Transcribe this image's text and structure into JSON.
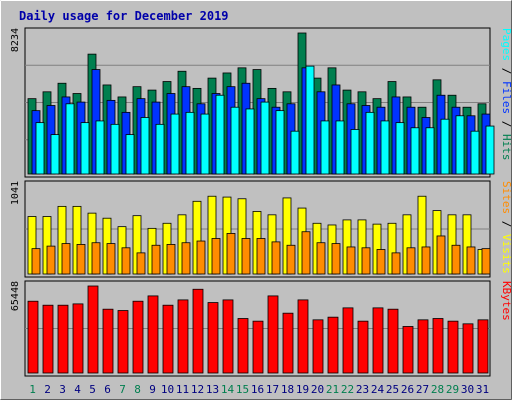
{
  "chart_data": {
    "type": "bar",
    "title": "Daily usage for December 2019",
    "days": [
      1,
      2,
      3,
      4,
      5,
      6,
      7,
      8,
      9,
      10,
      11,
      12,
      13,
      14,
      15,
      16,
      17,
      18,
      19,
      20,
      21,
      22,
      23,
      24,
      25,
      26,
      27,
      28,
      29,
      30,
      31
    ],
    "weekend_days": [
      1,
      7,
      8,
      14,
      15,
      21,
      22,
      28,
      29
    ],
    "colors": {
      "hits": "#007f4f",
      "files": "#0033ff",
      "pages": "#00ffff",
      "visits": "#ffff00",
      "sites": "#ff8c00",
      "kbytes": "#ff0000",
      "weekday_label": "#000080",
      "weekend_label": "#007f4f",
      "title": "#0000aa"
    },
    "panels": [
      {
        "name": "hits-files-pages",
        "ymax_label": "8234",
        "ymax": 8234,
        "legend": [
          "Pages",
          " / ",
          "Files",
          " / ",
          "Hits"
        ],
        "series": [
          {
            "name": "Hits",
            "values": [
              4400,
              4800,
              5300,
              4700,
              7000,
              5200,
              4500,
              5100,
              4900,
              5400,
              6000,
              5000,
              5600,
              5900,
              6200,
              6100,
              5000,
              4800,
              8234,
              5600,
              6200,
              4900,
              4800,
              4400,
              5400,
              4500,
              3900,
              5500,
              4600,
              3900,
              4100
            ]
          },
          {
            "name": "Files",
            "values": [
              3700,
              4000,
              4500,
              4200,
              6100,
              4300,
              3600,
              4400,
              4200,
              4700,
              5100,
              4100,
              4700,
              5100,
              5300,
              4400,
              3900,
              4100,
              6200,
              4800,
              5200,
              4100,
              4000,
              3900,
              4500,
              3900,
              3300,
              4600,
              3900,
              3400,
              3500
            ]
          },
          {
            "name": "Pages",
            "values": [
              3000,
              2300,
              4100,
              3000,
              3100,
              2900,
              2300,
              3300,
              2900,
              3500,
              3600,
              3500,
              4600,
              3900,
              3800,
              4200,
              3700,
              2500,
              6300,
              3100,
              3100,
              2600,
              3600,
              3100,
              3000,
              2700,
              2700,
              3200,
              3400,
              2500,
              2800
            ]
          }
        ]
      },
      {
        "name": "visits-sites",
        "ymax_label": "1041",
        "ymax": 1041,
        "legend": [
          "Sites",
          " / ",
          "Visits"
        ],
        "series": [
          {
            "name": "Visits",
            "values": [
              680,
              680,
              800,
              800,
              720,
              660,
              560,
              690,
              540,
              600,
              700,
              860,
              920,
              910,
              890,
              740,
              700,
              900,
              780,
              600,
              580,
              640,
              640,
              590,
              600,
              700,
              920,
              750,
              700,
              700,
              290
            ]
          },
          {
            "name": "Sites",
            "values": [
              300,
              330,
              360,
              350,
              370,
              360,
              310,
              250,
              340,
              350,
              370,
              390,
              420,
              480,
              420,
              420,
              380,
              340,
              500,
              370,
              360,
              320,
              310,
              290,
              250,
              310,
              320,
              450,
              340,
              320,
              300
            ]
          }
        ]
      },
      {
        "name": "kbytes",
        "ymax_label": "65448",
        "ymax": 65448,
        "legend": [
          "KBytes"
        ],
        "series": [
          {
            "name": "KBytes",
            "values": [
              54000,
              51000,
              51000,
              52000,
              65448,
              48000,
              47000,
              54000,
              58000,
              51000,
              55000,
              63000,
              53000,
              55000,
              41000,
              39000,
              58000,
              45000,
              55000,
              40000,
              42000,
              49000,
              39000,
              49000,
              48000,
              35000,
              40000,
              41000,
              39000,
              37000,
              40000
            ]
          }
        ]
      }
    ]
  }
}
